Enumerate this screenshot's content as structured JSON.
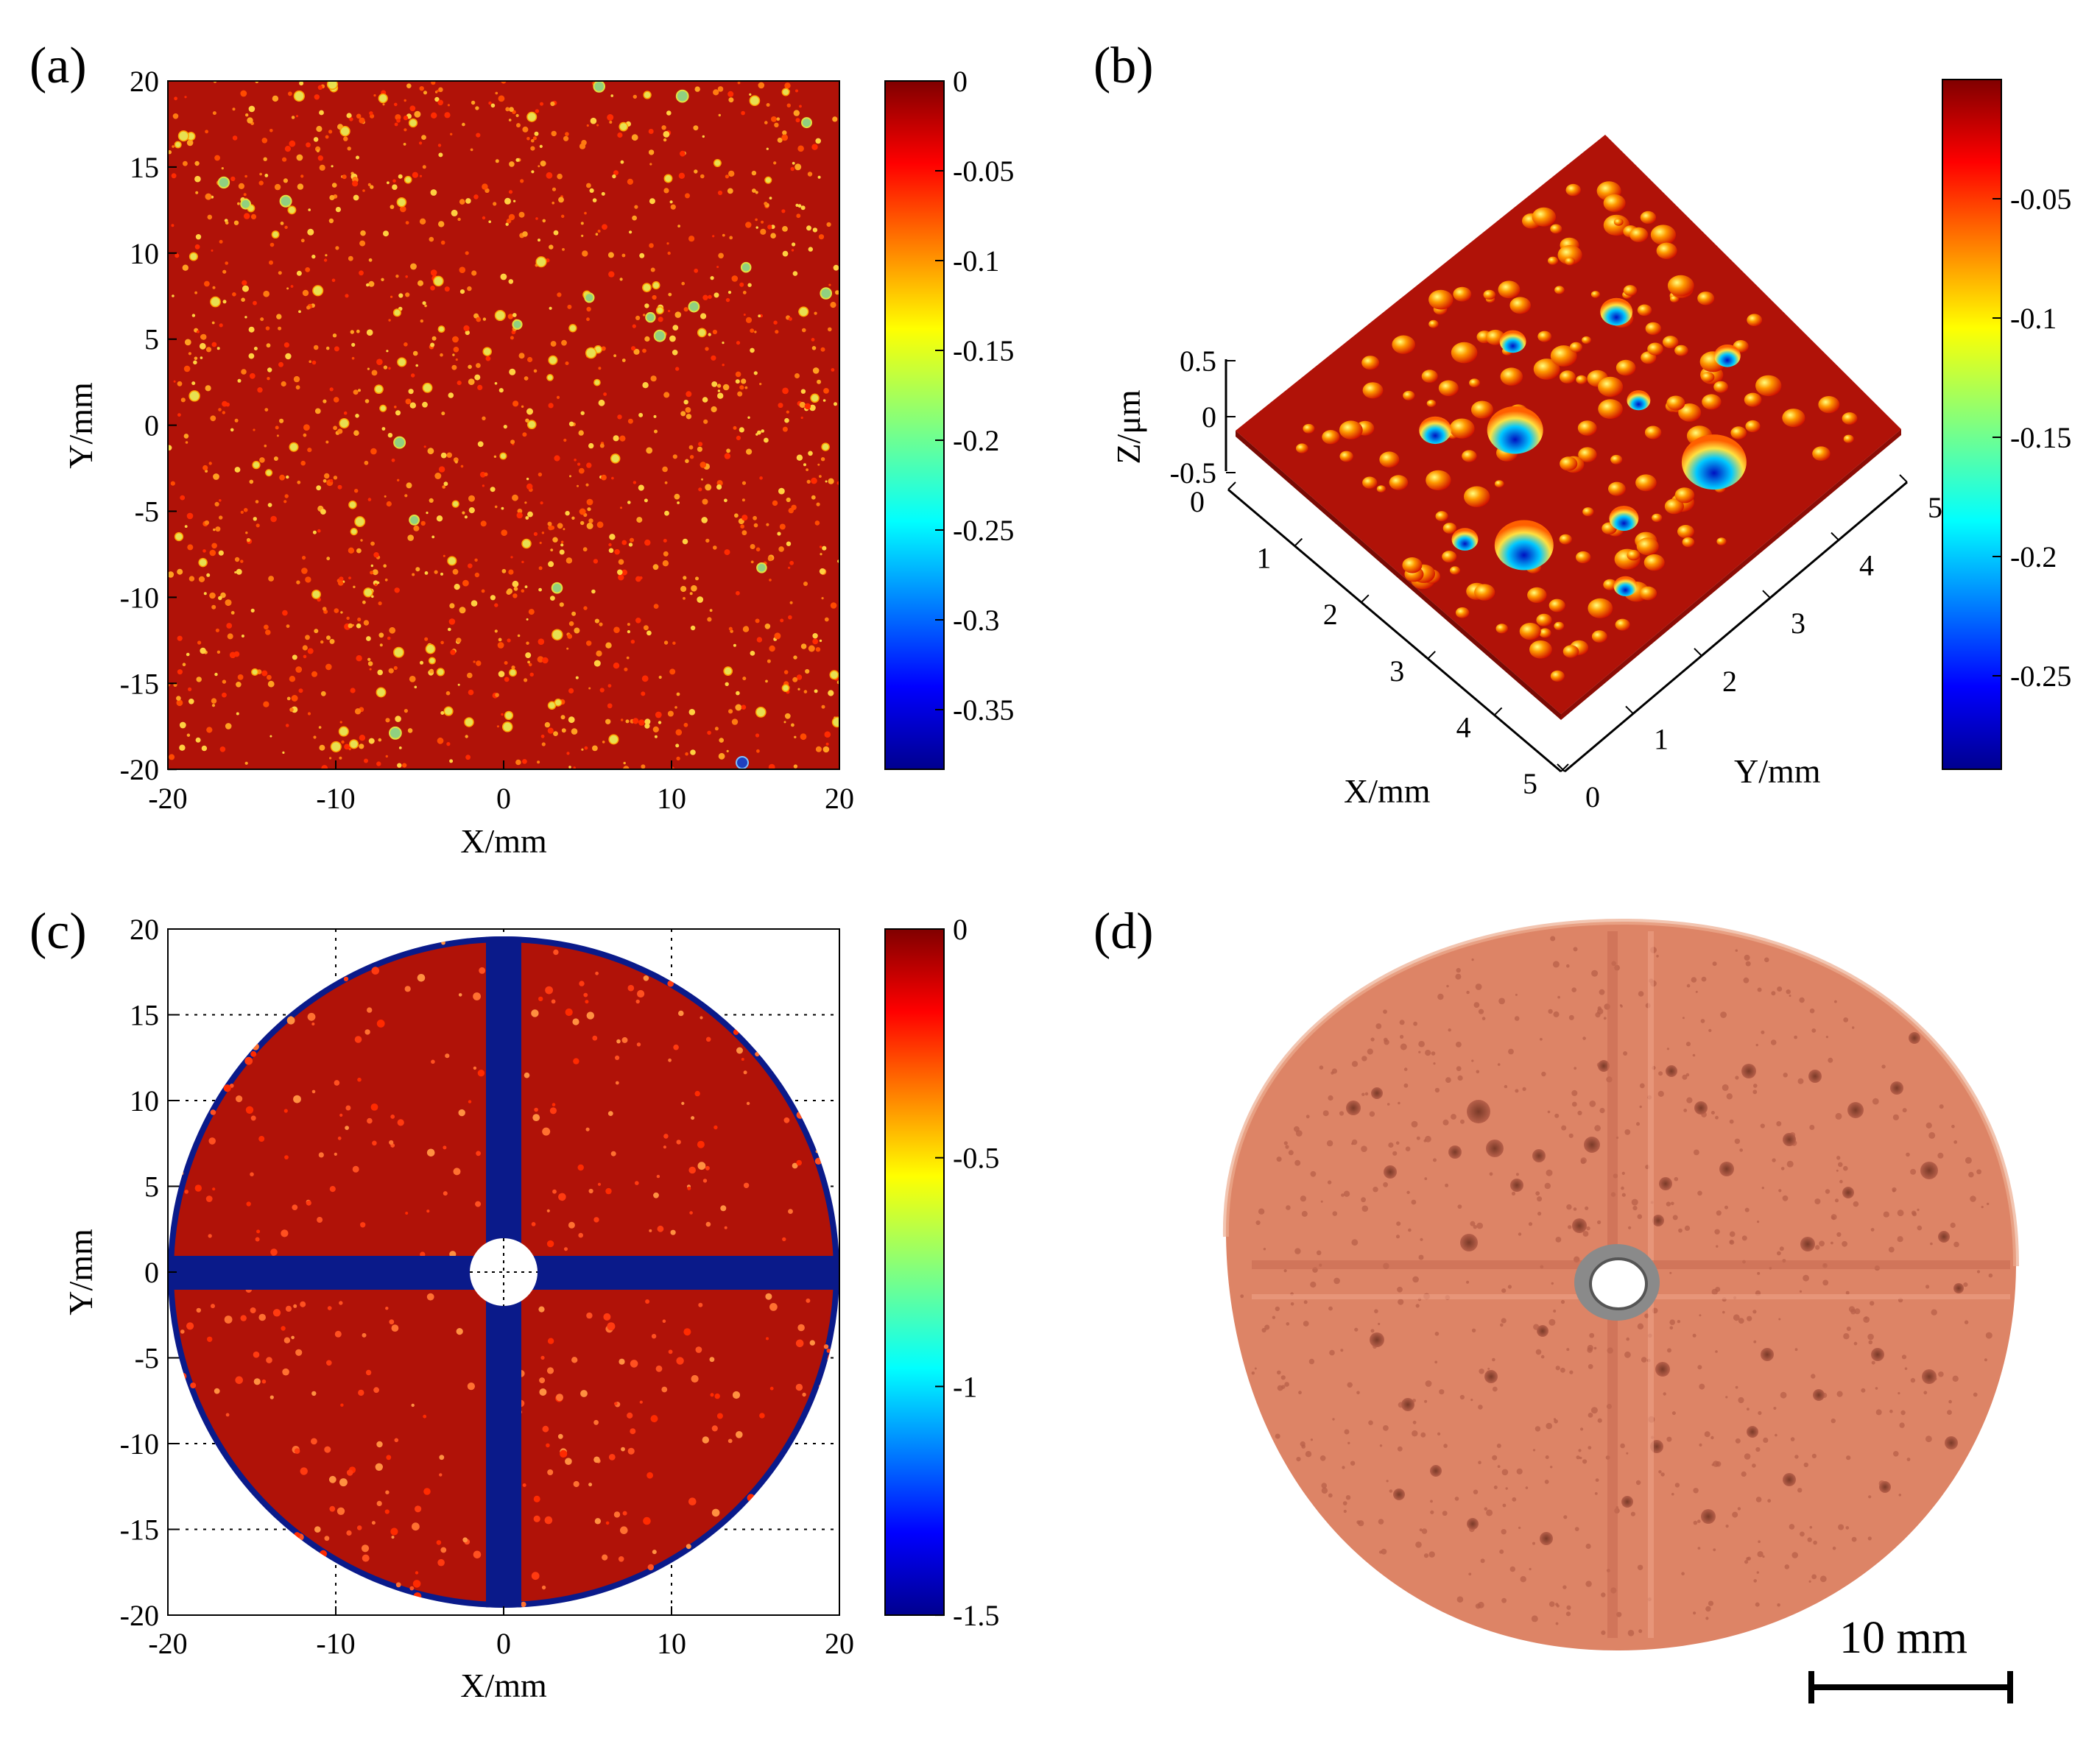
{
  "panels": {
    "a": {
      "label": "(a)",
      "xlabel": "X/mm",
      "ylabel": "Y/mm",
      "xticks": [
        "-20",
        "-10",
        "0",
        "10",
        "20"
      ],
      "yticks": [
        "20",
        "15",
        "10",
        "5",
        "0",
        "-5",
        "-10",
        "-15",
        "-20"
      ],
      "colorbar_ticks": [
        "0",
        "-0.05",
        "-0.1",
        "-0.15",
        "-0.2",
        "-0.25",
        "-0.3",
        "-0.35"
      ]
    },
    "b": {
      "label": "(b)",
      "zlabel": "Z/μm",
      "xlabel": "X/mm",
      "ylabel": "Y/mm",
      "zticks": [
        "0.5",
        "0",
        "-0.5"
      ],
      "xticks": [
        "0",
        "1",
        "2",
        "3",
        "4",
        "5"
      ],
      "yticks": [
        "0",
        "1",
        "2",
        "3",
        "4",
        "5"
      ],
      "colorbar_ticks": [
        "-0.05",
        "-0.1",
        "-0.15",
        "-0.2",
        "-0.25"
      ]
    },
    "c": {
      "label": "(c)",
      "xlabel": "X/mm",
      "ylabel": "Y/mm",
      "xticks": [
        "-20",
        "-10",
        "0",
        "10",
        "20"
      ],
      "yticks": [
        "20",
        "15",
        "10",
        "5",
        "0",
        "-5",
        "-10",
        "-15",
        "-20"
      ],
      "colorbar_ticks": [
        "0",
        "-0.5",
        "-1",
        "-1.5"
      ]
    },
    "d": {
      "label": "(d)",
      "scalebar": "10 mm"
    }
  },
  "colors": {
    "surface_red": "#b01208",
    "jet_dark_red": "#800000",
    "jet_blue": "#00008f",
    "sample_orange": "#dd8466"
  },
  "chart_data": [
    {
      "type": "heatmap",
      "title": "(a)",
      "xlabel": "X/mm",
      "ylabel": "Y/mm",
      "xlim": [
        -20,
        20
      ],
      "ylim": [
        -20,
        20
      ],
      "colorbar_range": [
        -0.38,
        0
      ],
      "colormap": "jet"
    },
    {
      "type": "heatmap",
      "title": "(b)",
      "xlabel": "X/mm",
      "ylabel": "Y/mm",
      "zlabel": "Z/μm",
      "xlim": [
        0,
        5
      ],
      "ylim": [
        0,
        5
      ],
      "zlim": [
        -0.5,
        0.5
      ],
      "colorbar_range": [
        -0.29,
        0
      ],
      "colormap": "jet"
    },
    {
      "type": "heatmap",
      "title": "(c)",
      "xlabel": "X/mm",
      "ylabel": "Y/mm",
      "xlim": [
        -20,
        20
      ],
      "ylim": [
        -20,
        20
      ],
      "colorbar_range": [
        -1.5,
        0
      ],
      "colormap": "jet",
      "grid": true
    }
  ]
}
